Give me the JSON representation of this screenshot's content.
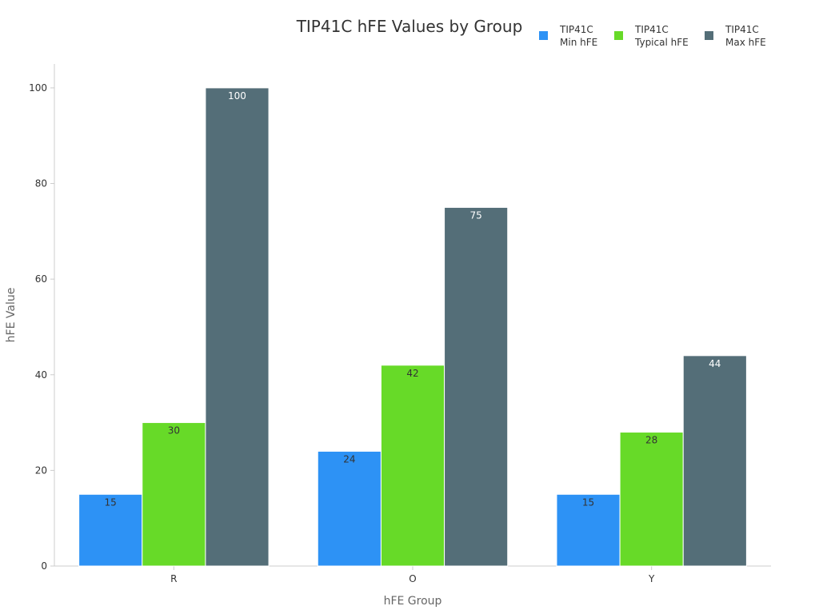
{
  "chart_data": {
    "type": "bar",
    "title": "TIP41C hFE Values by Group",
    "xlabel": "hFE Group",
    "ylabel": "hFE Value",
    "categories": [
      "R",
      "O",
      "Y"
    ],
    "ylim": [
      0,
      105
    ],
    "yticks": [
      0,
      20,
      40,
      60,
      80,
      100
    ],
    "grid": false,
    "legend_position": "top-right",
    "series": [
      {
        "name_line1": "TIP41C",
        "name_line2": "Min hFE",
        "color": "#2d92f5",
        "label_color": "#333333",
        "values": [
          15,
          24,
          15
        ]
      },
      {
        "name_line1": "TIP41C",
        "name_line2": "Typical hFE",
        "color": "#67da28",
        "label_color": "#333333",
        "values": [
          30,
          42,
          28
        ]
      },
      {
        "name_line1": "TIP41C",
        "name_line2": "Max hFE",
        "color": "#546e78",
        "label_color": "#ffffff",
        "values": [
          100,
          75,
          44
        ]
      }
    ]
  }
}
